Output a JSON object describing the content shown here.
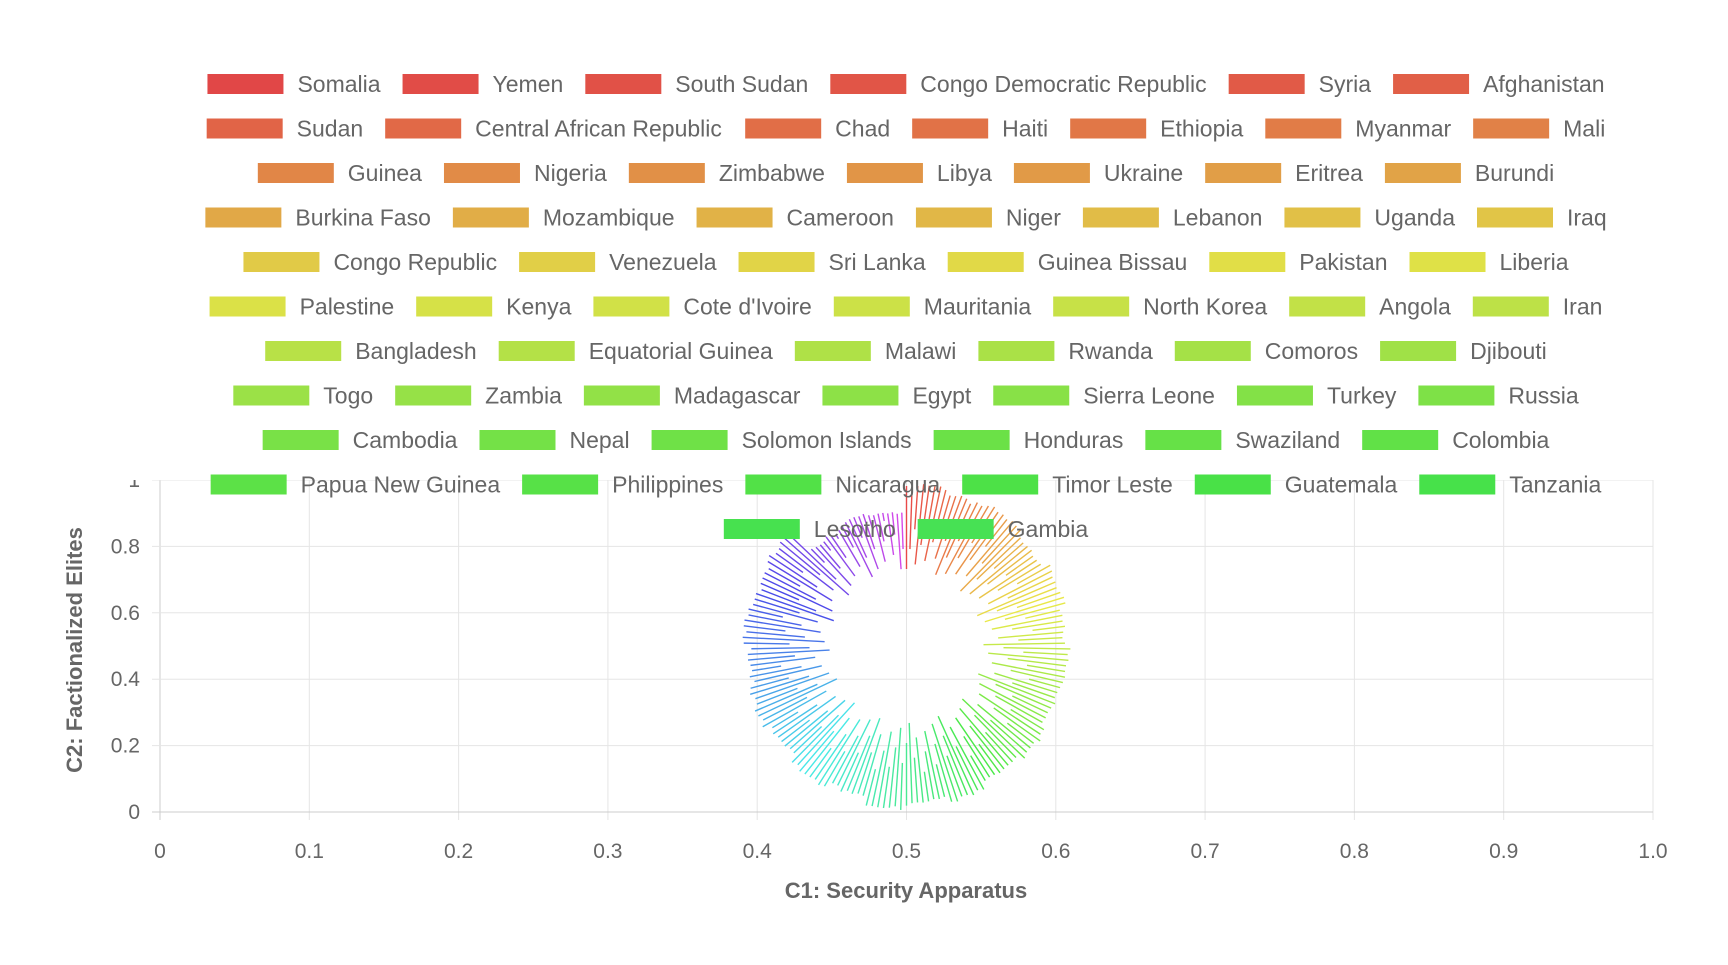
{
  "chart_data": {
    "type": "line",
    "xlabel": "C1: Security Apparatus",
    "ylabel": "C2: Factionalized Elites",
    "xlim": [
      0,
      1.0
    ],
    "ylim": [
      0,
      1
    ],
    "x_ticks": [
      "0",
      "0.1",
      "0.2",
      "0.3",
      "0.4",
      "0.5",
      "0.6",
      "0.7",
      "0.8",
      "0.9",
      "1.0"
    ],
    "y_ticks": [
      "0",
      "0.2",
      "0.4",
      "0.6",
      "0.8",
      "1"
    ],
    "grid": true,
    "legend_position": "top",
    "series_shape": "radial segments from center",
    "center": [
      0.5,
      0.5
    ],
    "color_scale": "red to violet around the circle",
    "series": [
      {
        "name": "Somalia"
      },
      {
        "name": "Yemen"
      },
      {
        "name": "South Sudan"
      },
      {
        "name": "Congo Democratic Republic"
      },
      {
        "name": "Syria"
      },
      {
        "name": "Afghanistan"
      },
      {
        "name": "Sudan"
      },
      {
        "name": "Central African Republic"
      },
      {
        "name": "Chad"
      },
      {
        "name": "Haiti"
      },
      {
        "name": "Ethiopia"
      },
      {
        "name": "Myanmar"
      },
      {
        "name": "Mali"
      },
      {
        "name": "Guinea"
      },
      {
        "name": "Nigeria"
      },
      {
        "name": "Zimbabwe"
      },
      {
        "name": "Libya"
      },
      {
        "name": "Ukraine"
      },
      {
        "name": "Eritrea"
      },
      {
        "name": "Burundi"
      },
      {
        "name": "Burkina Faso"
      },
      {
        "name": "Mozambique"
      },
      {
        "name": "Cameroon"
      },
      {
        "name": "Niger"
      },
      {
        "name": "Lebanon"
      },
      {
        "name": "Uganda"
      },
      {
        "name": "Iraq"
      },
      {
        "name": "Congo Republic"
      },
      {
        "name": "Venezuela"
      },
      {
        "name": "Sri Lanka"
      },
      {
        "name": "Guinea Bissau"
      },
      {
        "name": "Pakistan"
      },
      {
        "name": "Liberia"
      },
      {
        "name": "Palestine"
      },
      {
        "name": "Kenya"
      },
      {
        "name": "Cote d'Ivoire"
      },
      {
        "name": "Mauritania"
      },
      {
        "name": "North Korea"
      },
      {
        "name": "Angola"
      },
      {
        "name": "Iran"
      },
      {
        "name": "Bangladesh"
      },
      {
        "name": "Equatorial Guinea"
      },
      {
        "name": "Malawi"
      },
      {
        "name": "Rwanda"
      },
      {
        "name": "Comoros"
      },
      {
        "name": "Djibouti"
      },
      {
        "name": "Togo"
      },
      {
        "name": "Zambia"
      },
      {
        "name": "Madagascar"
      },
      {
        "name": "Egypt"
      },
      {
        "name": "Sierra Leone"
      },
      {
        "name": "Turkey"
      },
      {
        "name": "Russia"
      },
      {
        "name": "Cambodia"
      },
      {
        "name": "Nepal"
      },
      {
        "name": "Solomon Islands"
      },
      {
        "name": "Honduras"
      },
      {
        "name": "Swaziland"
      },
      {
        "name": "Colombia"
      },
      {
        "name": "Papua New Guinea"
      },
      {
        "name": "Philippines"
      },
      {
        "name": "Nicaragua"
      },
      {
        "name": "Timor Leste"
      },
      {
        "name": "Guatemala"
      },
      {
        "name": "Tanzania"
      },
      {
        "name": "Lesotho"
      },
      {
        "name": "Gambia"
      }
    ]
  }
}
